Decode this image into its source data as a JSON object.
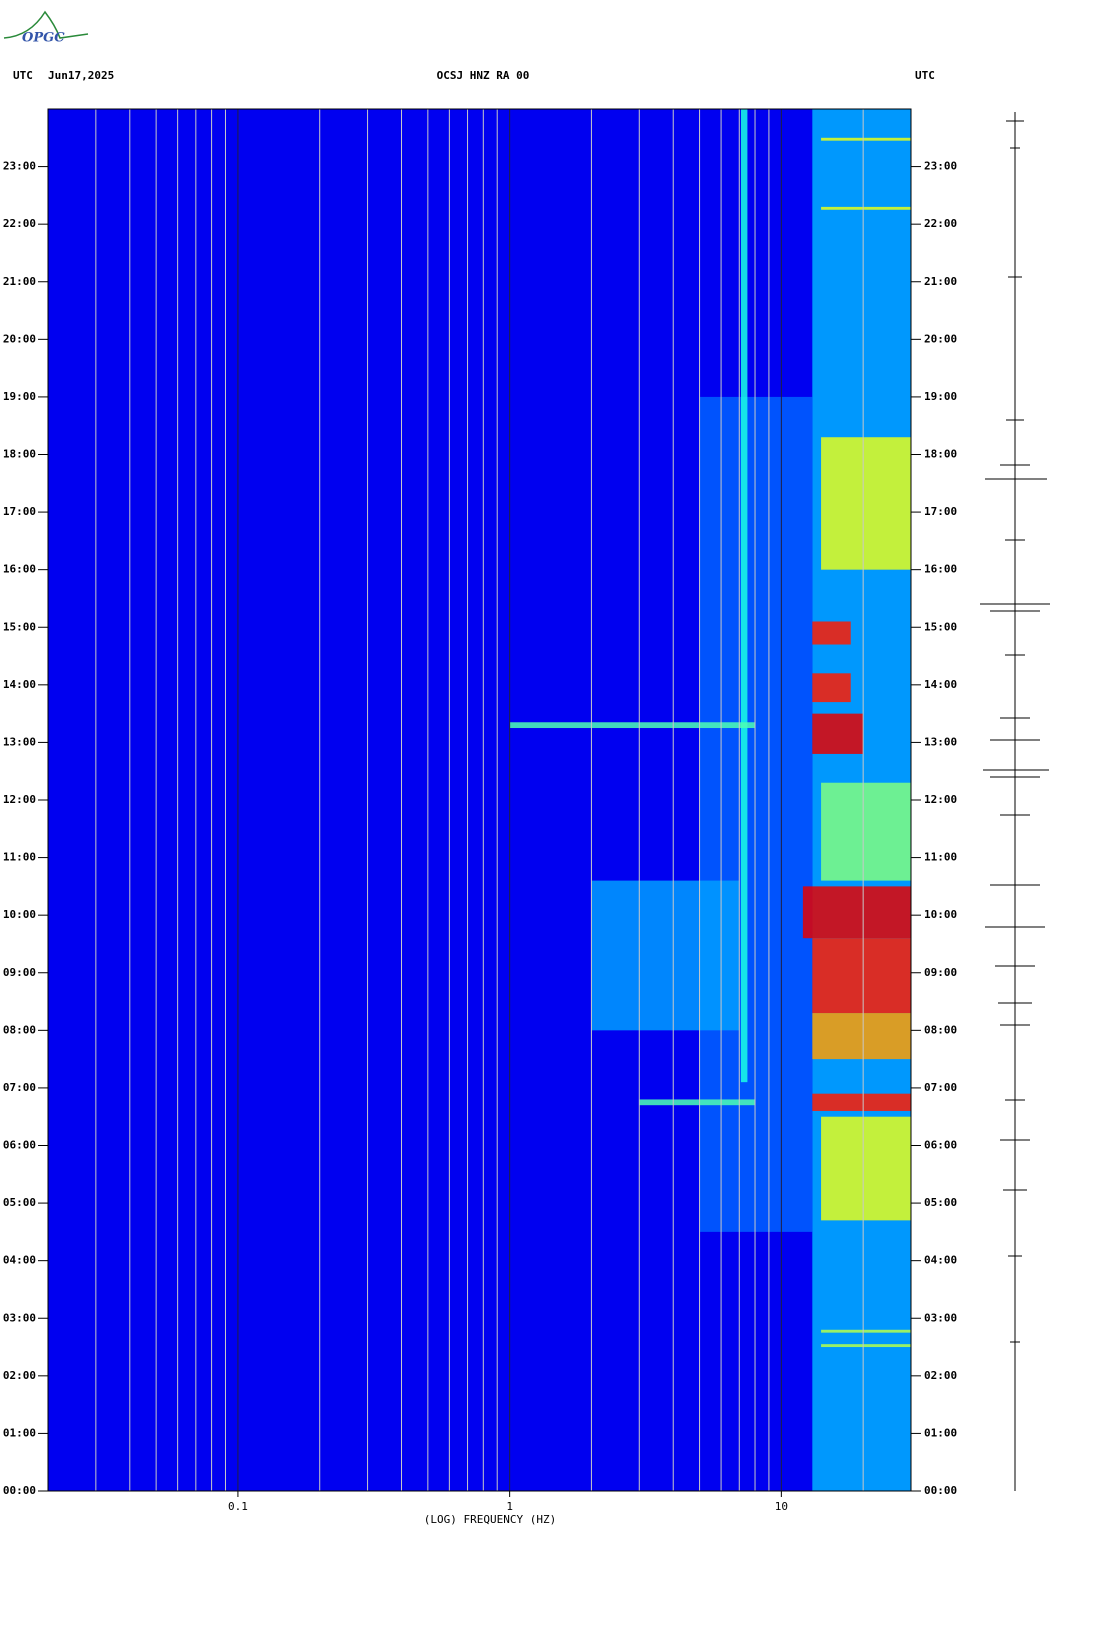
{
  "logo": "OPGC",
  "chart_data": {
    "type": "spectrogram",
    "title": "OCSJ HNZ RA 00",
    "date": "Jun17,2025",
    "left_zone": "UTC",
    "right_zone": "UTC",
    "xlabel": "(LOG) FREQUENCY (HZ)",
    "xscale": "log",
    "xlim": [
      0.02,
      30
    ],
    "xticks": [
      0.1,
      1,
      10
    ],
    "xminor_ticks": [
      0.03,
      0.04,
      0.05,
      0.06,
      0.07,
      0.08,
      0.09,
      0.2,
      0.3,
      0.4,
      0.5,
      0.6,
      0.7,
      0.8,
      0.9,
      2,
      3,
      4,
      5,
      6,
      7,
      8,
      9,
      20
    ],
    "grid": true,
    "ylim": [
      0,
      24
    ],
    "yticks": [
      {
        "value": 0,
        "label": "00:00"
      },
      {
        "value": 1,
        "label": "01:00"
      },
      {
        "value": 2,
        "label": "02:00"
      },
      {
        "value": 3,
        "label": "03:00"
      },
      {
        "value": 4,
        "label": "04:00"
      },
      {
        "value": 5,
        "label": "05:00"
      },
      {
        "value": 6,
        "label": "06:00"
      },
      {
        "value": 7,
        "label": "07:00"
      },
      {
        "value": 8,
        "label": "08:00"
      },
      {
        "value": 9,
        "label": "09:00"
      },
      {
        "value": 10,
        "label": "10:00"
      },
      {
        "value": 11,
        "label": "11:00"
      },
      {
        "value": 12,
        "label": "12:00"
      },
      {
        "value": 13,
        "label": "13:00"
      },
      {
        "value": 14,
        "label": "14:00"
      },
      {
        "value": 15,
        "label": "15:00"
      },
      {
        "value": 16,
        "label": "16:00"
      },
      {
        "value": 17,
        "label": "17:00"
      },
      {
        "value": 18,
        "label": "18:00"
      },
      {
        "value": 19,
        "label": "19:00"
      },
      {
        "value": 20,
        "label": "20:00"
      },
      {
        "value": 21,
        "label": "21:00"
      },
      {
        "value": 22,
        "label": "22:00"
      },
      {
        "value": 23,
        "label": "23:00"
      }
    ],
    "background_level": 0.11,
    "bands": [
      {
        "t": [
          0,
          24
        ],
        "f": [
          13,
          30
        ],
        "level": 0.3
      },
      {
        "t": [
          4.5,
          19
        ],
        "f": [
          5,
          13
        ],
        "level": 0.22
      },
      {
        "t": [
          7.1,
          24
        ],
        "f": [
          7.1,
          7.5
        ],
        "level": 0.4
      },
      {
        "t": [
          8,
          10.6
        ],
        "f": [
          2,
          7
        ],
        "level": 0.28
      },
      {
        "t": [
          4.7,
          6.5
        ],
        "f": [
          14,
          30
        ],
        "level": 0.6
      },
      {
        "t": [
          16,
          18.3
        ],
        "f": [
          14,
          30
        ],
        "level": 0.6
      },
      {
        "t": [
          10.6,
          12.3
        ],
        "f": [
          14,
          30
        ],
        "level": 0.5
      },
      {
        "t": [
          7.5,
          8.3
        ],
        "f": [
          13,
          30
        ],
        "level": 0.72
      },
      {
        "t": [
          8.3,
          9.6
        ],
        "f": [
          13,
          30
        ],
        "level": 0.85
      },
      {
        "t": [
          9.6,
          10.5
        ],
        "f": [
          12,
          30
        ],
        "level": 0.9
      },
      {
        "t": [
          12.8,
          13.5
        ],
        "f": [
          13,
          20
        ],
        "level": 0.9
      },
      {
        "t": [
          13.7,
          14.2
        ],
        "f": [
          13,
          18
        ],
        "level": 0.85
      },
      {
        "t": [
          14.7,
          15.1
        ],
        "f": [
          13,
          18
        ],
        "level": 0.85
      },
      {
        "t": [
          6.6,
          6.9
        ],
        "f": [
          13,
          30
        ],
        "level": 0.85
      },
      {
        "t": [
          13.25,
          13.35
        ],
        "f": [
          1,
          8
        ],
        "level": 0.45
      },
      {
        "t": [
          6.7,
          6.8
        ],
        "f": [
          3,
          8
        ],
        "level": 0.45
      },
      {
        "t": [
          22.25,
          22.3
        ],
        "f": [
          14,
          30
        ],
        "level": 0.6
      },
      {
        "t": [
          23.45,
          23.5
        ],
        "f": [
          14,
          30
        ],
        "level": 0.6
      },
      {
        "t": [
          2.5,
          2.55
        ],
        "f": [
          14,
          30
        ],
        "level": 0.55
      },
      {
        "t": [
          2.75,
          2.8
        ],
        "f": [
          14,
          30
        ],
        "level": 0.55
      }
    ]
  }
}
